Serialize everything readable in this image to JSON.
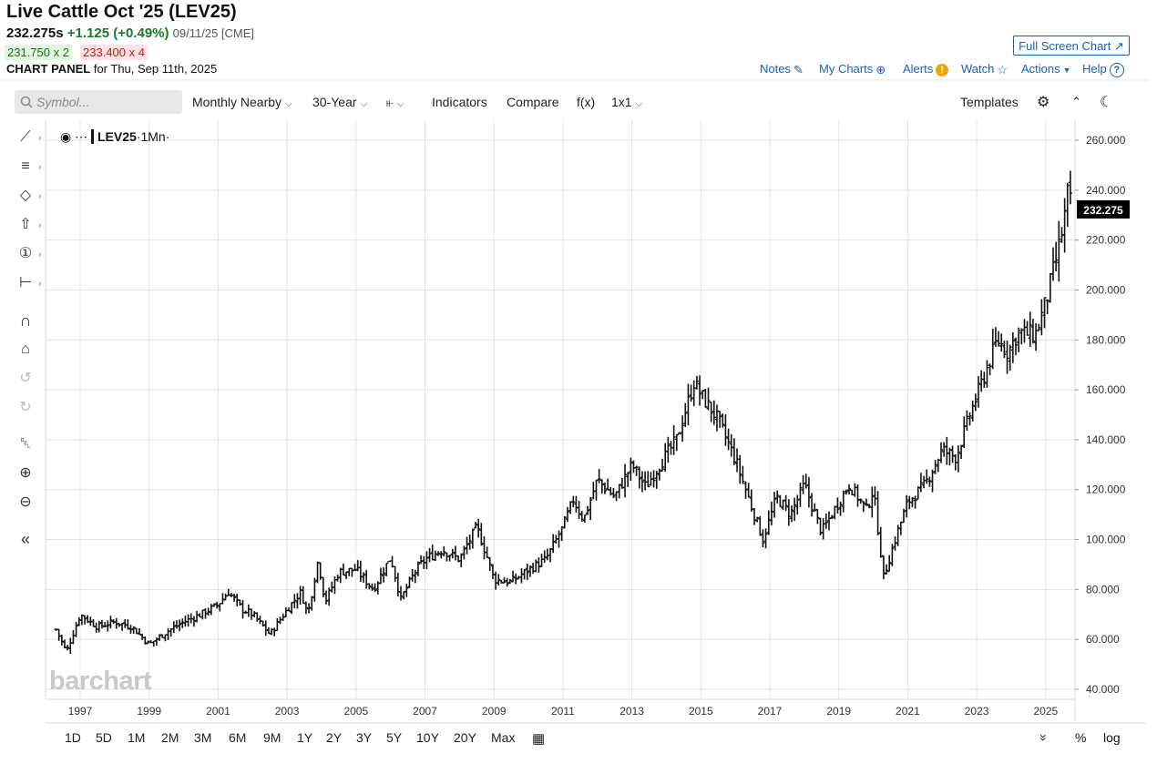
{
  "header": {
    "title": "Live Cattle Oct '25 (LEV25)",
    "last_price": "232.275s",
    "change": "+1.125 (+0.49%)",
    "meta": "09/11/25 [CME]",
    "bid": "231.750 x 2",
    "ask": "233.400 x 4",
    "panel_label": "CHART PANEL",
    "panel_date": "for Thu, Sep 11th, 2025"
  },
  "top_links": {
    "fullscreen": "Full Screen Chart",
    "notes": "Notes",
    "mycharts": "My Charts",
    "alerts": "Alerts",
    "watch": "Watch",
    "actions": "Actions",
    "help": "Help"
  },
  "toolbar": {
    "symbol_placeholder": "Symbol...",
    "aggregation": "Monthly Nearby",
    "period": "30-Year",
    "indicators": "Indicators",
    "compare": "Compare",
    "fx": "f(x)",
    "layout": "1x1",
    "templates": "Templates"
  },
  "legend": {
    "symbol": "LEV25",
    "interval": "·1Mn·"
  },
  "watermark": "barchart",
  "last_price_label": "232.275",
  "ranges": [
    "1D",
    "5D",
    "1M",
    "2M",
    "3M",
    "6M",
    "9M",
    "1Y",
    "2Y",
    "3Y",
    "5Y",
    "10Y",
    "20Y",
    "Max"
  ],
  "footer": {
    "percent": "%",
    "log": "log"
  },
  "colors": {
    "accent": "#1a5fb4",
    "up": "#1b7a2b",
    "down": "#b02020",
    "bars": "#111111"
  },
  "chart_data": {
    "type": "ohlc",
    "interval": "monthly",
    "ylim": [
      40,
      260
    ],
    "y_ticks": [
      "260.000",
      "240.000",
      "220.000",
      "200.000",
      "180.000",
      "160.000",
      "140.000",
      "120.000",
      "100.000",
      "80.000",
      "60.000",
      "40.000"
    ],
    "x_ticks": [
      "1997",
      "1999",
      "2001",
      "2003",
      "2005",
      "2007",
      "2009",
      "2011",
      "2013",
      "2015",
      "2017",
      "2019",
      "2021",
      "2023",
      "2025"
    ],
    "last": 232.275,
    "close_path": [
      {
        "x": 1996.3,
        "y": 64
      },
      {
        "x": 1996.6,
        "y": 55
      },
      {
        "x": 1997.0,
        "y": 70
      },
      {
        "x": 1997.5,
        "y": 65
      },
      {
        "x": 1998.0,
        "y": 67
      },
      {
        "x": 1998.5,
        "y": 65
      },
      {
        "x": 1999.0,
        "y": 58
      },
      {
        "x": 1999.5,
        "y": 63
      },
      {
        "x": 2000.0,
        "y": 67
      },
      {
        "x": 2000.5,
        "y": 70
      },
      {
        "x": 2001.0,
        "y": 74
      },
      {
        "x": 2001.3,
        "y": 79
      },
      {
        "x": 2001.7,
        "y": 72
      },
      {
        "x": 2002.0,
        "y": 70
      },
      {
        "x": 2002.5,
        "y": 62
      },
      {
        "x": 2003.0,
        "y": 72
      },
      {
        "x": 2003.4,
        "y": 79
      },
      {
        "x": 2003.6,
        "y": 70
      },
      {
        "x": 2003.9,
        "y": 92
      },
      {
        "x": 2004.1,
        "y": 75
      },
      {
        "x": 2004.5,
        "y": 87
      },
      {
        "x": 2005.0,
        "y": 88
      },
      {
        "x": 2005.5,
        "y": 80
      },
      {
        "x": 2006.0,
        "y": 93
      },
      {
        "x": 2006.3,
        "y": 76
      },
      {
        "x": 2006.7,
        "y": 87
      },
      {
        "x": 2007.0,
        "y": 92
      },
      {
        "x": 2007.5,
        "y": 96
      },
      {
        "x": 2008.0,
        "y": 92
      },
      {
        "x": 2008.5,
        "y": 105
      },
      {
        "x": 2008.8,
        "y": 93
      },
      {
        "x": 2009.0,
        "y": 84
      },
      {
        "x": 2009.5,
        "y": 83
      },
      {
        "x": 2010.0,
        "y": 88
      },
      {
        "x": 2010.5,
        "y": 92
      },
      {
        "x": 2011.0,
        "y": 105
      },
      {
        "x": 2011.3,
        "y": 116
      },
      {
        "x": 2011.6,
        "y": 108
      },
      {
        "x": 2012.0,
        "y": 124
      },
      {
        "x": 2012.5,
        "y": 117
      },
      {
        "x": 2013.0,
        "y": 130
      },
      {
        "x": 2013.4,
        "y": 121
      },
      {
        "x": 2013.8,
        "y": 130
      },
      {
        "x": 2014.3,
        "y": 140
      },
      {
        "x": 2014.8,
        "y": 163
      },
      {
        "x": 2015.0,
        "y": 158
      },
      {
        "x": 2015.5,
        "y": 148
      },
      {
        "x": 2016.0,
        "y": 132
      },
      {
        "x": 2016.5,
        "y": 112
      },
      {
        "x": 2016.8,
        "y": 100
      },
      {
        "x": 2017.2,
        "y": 117
      },
      {
        "x": 2017.6,
        "y": 110
      },
      {
        "x": 2018.0,
        "y": 122
      },
      {
        "x": 2018.5,
        "y": 103
      },
      {
        "x": 2019.0,
        "y": 115
      },
      {
        "x": 2019.3,
        "y": 122
      },
      {
        "x": 2019.8,
        "y": 112
      },
      {
        "x": 2020.0,
        "y": 120
      },
      {
        "x": 2020.3,
        "y": 85
      },
      {
        "x": 2020.7,
        "y": 103
      },
      {
        "x": 2021.0,
        "y": 115
      },
      {
        "x": 2021.5,
        "y": 122
      },
      {
        "x": 2022.0,
        "y": 136
      },
      {
        "x": 2022.4,
        "y": 133
      },
      {
        "x": 2022.8,
        "y": 150
      },
      {
        "x": 2023.2,
        "y": 165
      },
      {
        "x": 2023.6,
        "y": 180
      },
      {
        "x": 2023.9,
        "y": 175
      },
      {
        "x": 2024.2,
        "y": 183
      },
      {
        "x": 2024.7,
        "y": 182
      },
      {
        "x": 2025.0,
        "y": 195
      },
      {
        "x": 2025.3,
        "y": 212
      },
      {
        "x": 2025.5,
        "y": 225
      },
      {
        "x": 2025.65,
        "y": 240
      },
      {
        "x": 2025.75,
        "y": 232.275
      }
    ]
  }
}
